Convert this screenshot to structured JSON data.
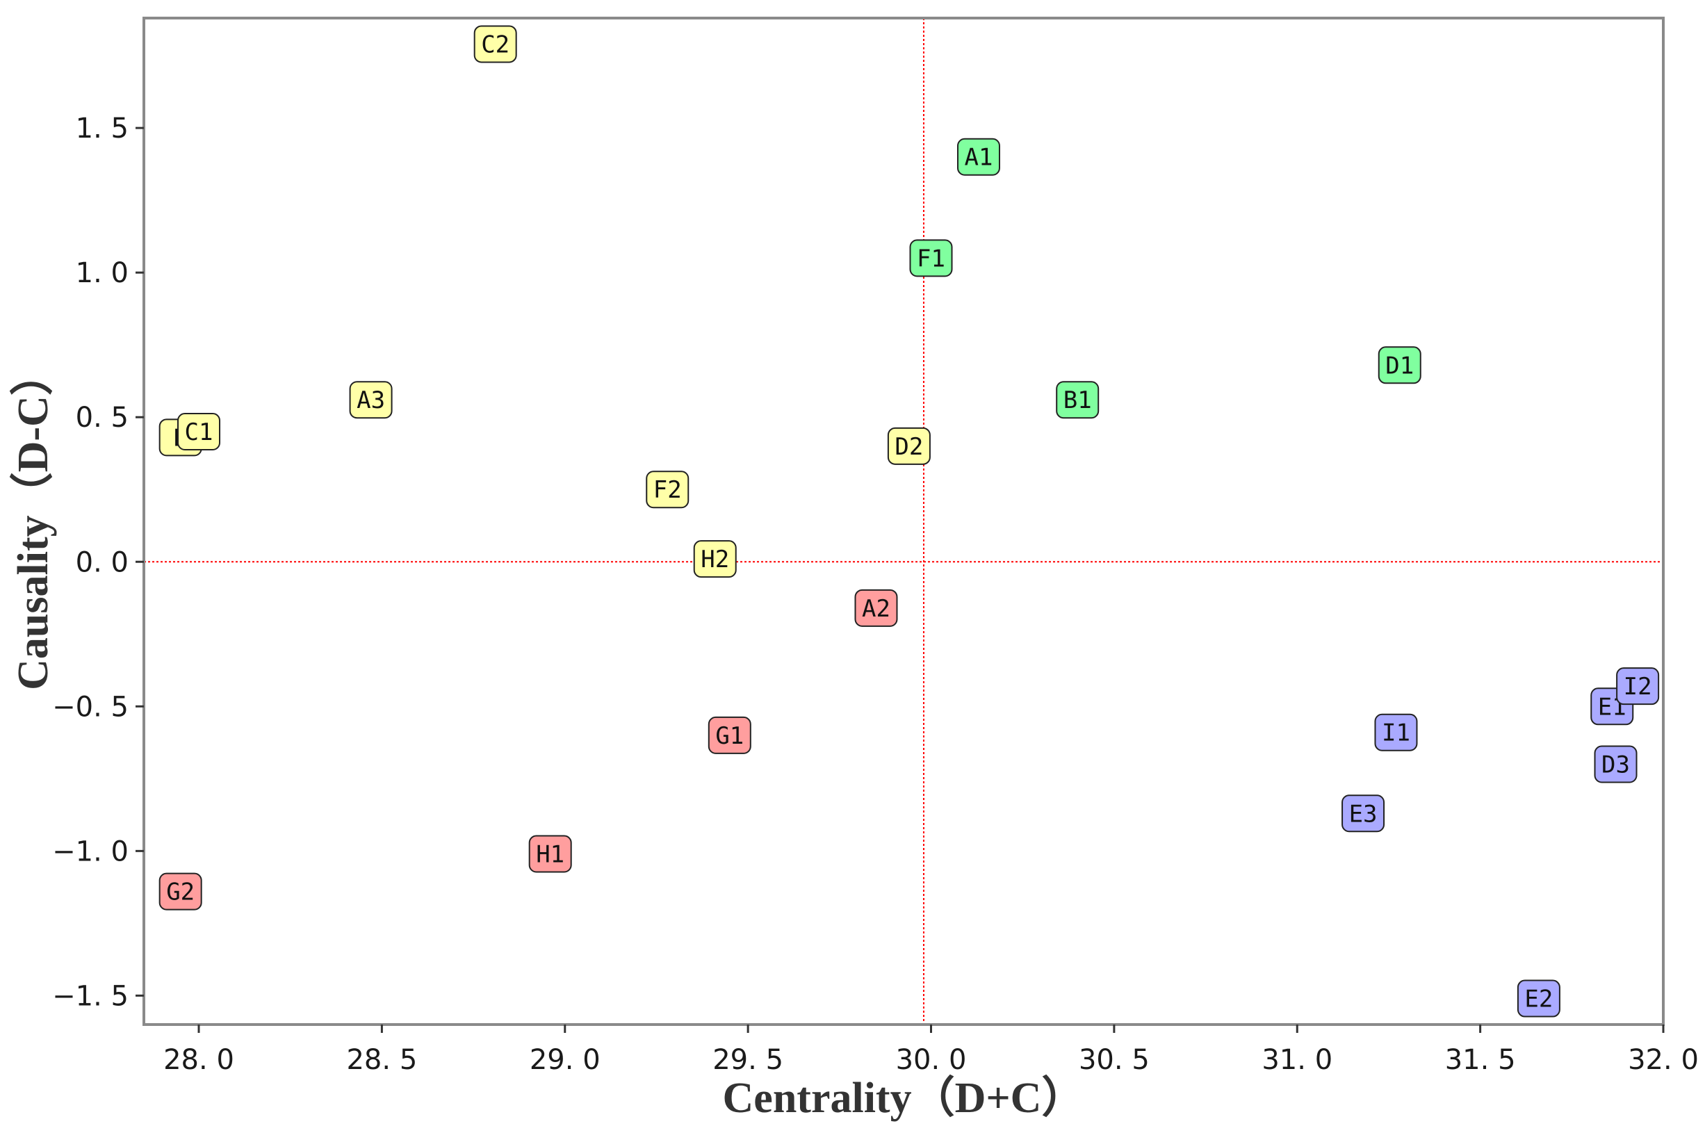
{
  "chart_data": {
    "type": "scatter",
    "title": "",
    "xlabel": "Centrality（D+C）",
    "ylabel": "Causality（D-C）",
    "xlim": [
      27.85,
      32.0
    ],
    "ylim": [
      -1.6,
      1.88
    ],
    "xticks": [
      28.0,
      28.5,
      29.0,
      29.5,
      30.0,
      30.5,
      31.0,
      31.5,
      32.0
    ],
    "yticks": [
      -1.5,
      -1.0,
      -0.5,
      0.0,
      0.5,
      1.0,
      1.5
    ],
    "xtick_labels": [
      "28. 0",
      "28. 5",
      "29. 0",
      "29. 5",
      "30. 0",
      "30. 5",
      "31. 0",
      "31. 5",
      "32. 0"
    ],
    "ytick_labels": [
      "−1. 5",
      "−1. 0",
      "−0. 5",
      "0. 0",
      "0. 5",
      "1. 0",
      "1. 5"
    ],
    "reference_lines": {
      "x": 29.98,
      "y": 0.0,
      "color": "#ff0000",
      "style": "dotted"
    },
    "grid": false,
    "groups": {
      "green": {
        "color": "#80ff9f"
      },
      "yellow": {
        "color": "#ffffa8"
      },
      "red": {
        "color": "#ff9e9e"
      },
      "blue": {
        "color": "#aaaaff"
      }
    },
    "points": [
      {
        "label": "C2",
        "x": 28.81,
        "y": 1.79,
        "group": "yellow"
      },
      {
        "label": "A1",
        "x": 30.13,
        "y": 1.4,
        "group": "green"
      },
      {
        "label": "F1",
        "x": 30.0,
        "y": 1.05,
        "group": "green"
      },
      {
        "label": "D1",
        "x": 31.28,
        "y": 0.68,
        "group": "green"
      },
      {
        "label": "B1",
        "x": 30.4,
        "y": 0.56,
        "group": "green"
      },
      {
        "label": "A3",
        "x": 28.47,
        "y": 0.56,
        "group": "yellow"
      },
      {
        "label": "B",
        "x": 27.95,
        "y": 0.43,
        "group": "yellow"
      },
      {
        "label": "C1",
        "x": 28.0,
        "y": 0.45,
        "group": "yellow"
      },
      {
        "label": "D2",
        "x": 29.94,
        "y": 0.4,
        "group": "yellow"
      },
      {
        "label": "F2",
        "x": 29.28,
        "y": 0.25,
        "group": "yellow"
      },
      {
        "label": "H2",
        "x": 29.41,
        "y": 0.01,
        "group": "yellow"
      },
      {
        "label": "A2",
        "x": 29.85,
        "y": -0.16,
        "group": "red"
      },
      {
        "label": "G1",
        "x": 29.45,
        "y": -0.6,
        "group": "red"
      },
      {
        "label": "H1",
        "x": 28.96,
        "y": -1.01,
        "group": "red"
      },
      {
        "label": "G2",
        "x": 27.95,
        "y": -1.14,
        "group": "red"
      },
      {
        "label": "E1",
        "x": 31.86,
        "y": -0.5,
        "group": "blue"
      },
      {
        "label": "I2",
        "x": 31.93,
        "y": -0.43,
        "group": "blue"
      },
      {
        "label": "I1",
        "x": 31.27,
        "y": -0.59,
        "group": "blue"
      },
      {
        "label": "D3",
        "x": 31.87,
        "y": -0.7,
        "group": "blue"
      },
      {
        "label": "E3",
        "x": 31.18,
        "y": -0.87,
        "group": "blue"
      },
      {
        "label": "E2",
        "x": 31.66,
        "y": -1.51,
        "group": "blue"
      }
    ]
  }
}
